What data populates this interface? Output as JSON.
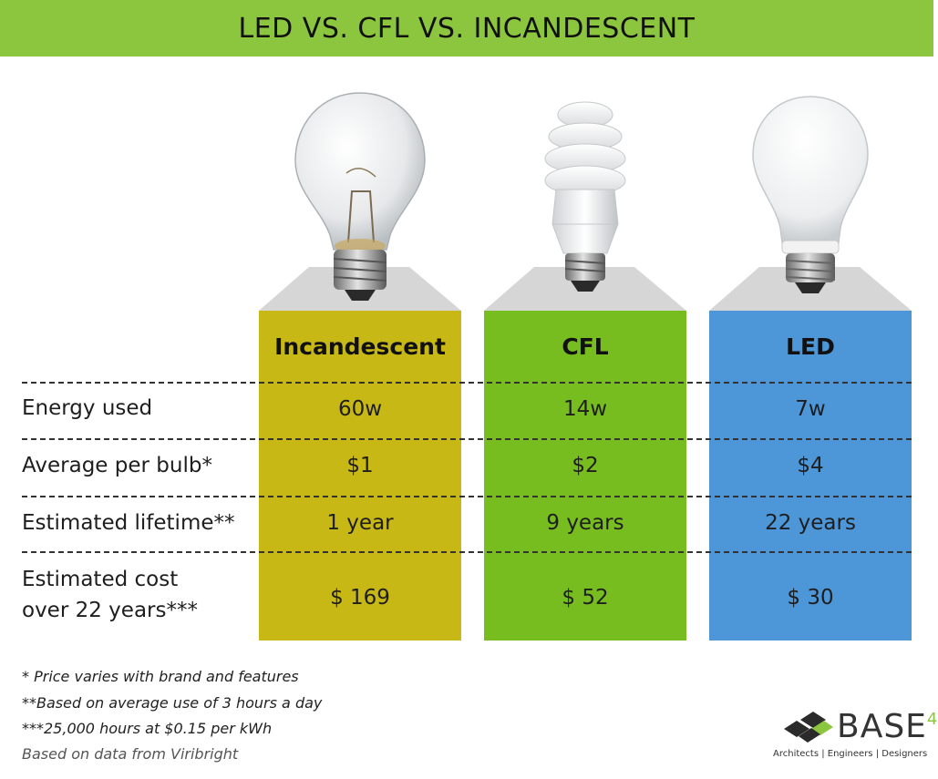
{
  "title": "LED VS. CFL VS. INCANDESCENT",
  "colors": {
    "banner": "#8cc63f",
    "incandescent": "#c8b816",
    "cfl": "#78bd1f",
    "led": "#4d96d8",
    "beam": "#d4d4d4"
  },
  "columns": [
    {
      "name": "Incandescent",
      "energy": "60w",
      "price": "$1",
      "lifetime": "1 year",
      "cost": "$ 169"
    },
    {
      "name": "CFL",
      "energy": "14w",
      "price": "$2",
      "lifetime": "9 years",
      "cost": "$ 52"
    },
    {
      "name": "LED",
      "energy": "7w",
      "price": "$4",
      "lifetime": "22 years",
      "cost": "$ 30"
    }
  ],
  "rows": {
    "energy": "Energy used",
    "price": "Average per bulb*",
    "lifetime": "Estimated lifetime**",
    "cost_line1": "Estimated cost",
    "cost_line2": "over 22 years***"
  },
  "footnotes": [
    "* Price varies with brand and features",
    "**Based on average use of 3 hours a day",
    "***25,000 hours at $0.15 per kWh"
  ],
  "source": "Based on data from Viribright",
  "logo": {
    "name": "BASE",
    "superscript": "4",
    "tagline": "Architects | Engineers | Designers"
  },
  "icons": [
    "incandescent-bulb-icon",
    "cfl-bulb-icon",
    "led-bulb-icon",
    "base4-logo-icon"
  ]
}
